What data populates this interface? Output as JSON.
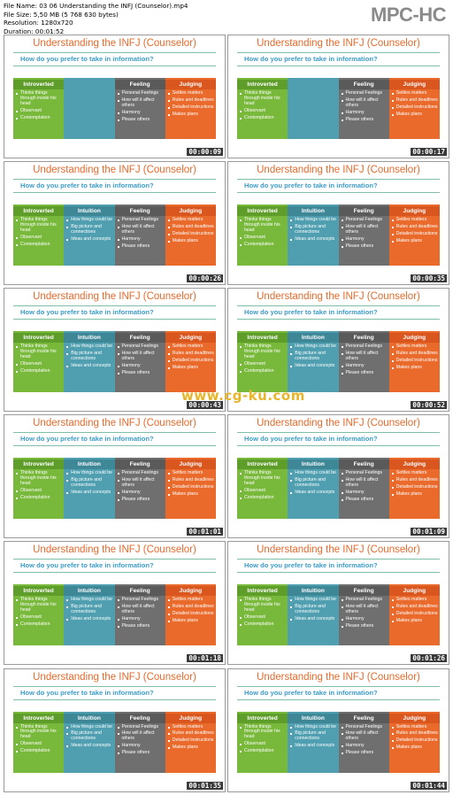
{
  "file_info": {
    "name_line": "File Name: 03 06 Understanding the INFJ (Counselor).mp4",
    "size_line": "File Size: 5,50 MB (5 768 630 bytes)",
    "resolution_line": "Resolution: 1280x720",
    "duration_line": "Duration: 00:01:52"
  },
  "brand": {
    "logo_text": "MPC-HC",
    "logo_color": "#8a8a8a"
  },
  "watermark": {
    "text": "www.cg-ku.com",
    "color": "#e7b52a"
  },
  "slide": {
    "title": "Understanding the INFJ (Counselor)",
    "question": "How do you prefer to take in information?",
    "columns": [
      {
        "key": "intro",
        "heading": "Introverted",
        "color": "#78b83a",
        "items": [
          "Thinks things through inside his head",
          "Observant",
          "Contemplation"
        ]
      },
      {
        "key": "intui",
        "heading": "Intuition",
        "color": "#4f9fb0",
        "items": [
          "How things could be",
          "Big picture and connections",
          "Ideas and concepts"
        ]
      },
      {
        "key": "feel",
        "heading": "Feeling",
        "color": "#6f6f6f",
        "items": [
          "Personal Feelings",
          "How will it affect others",
          "Harmony",
          "Please others"
        ]
      },
      {
        "key": "judge",
        "heading": "Judging",
        "color": "#ea6a2c",
        "items": [
          "Settles matters",
          "Rules and deadlines",
          "Detailed instructions",
          "Makes plans"
        ]
      }
    ]
  },
  "thumbnails": [
    {
      "time": "00:00:09",
      "intuition_visible": false
    },
    {
      "time": "00:00:17",
      "intuition_visible": false
    },
    {
      "time": "00:00:26",
      "intuition_visible": true
    },
    {
      "time": "00:00:35",
      "intuition_visible": true
    },
    {
      "time": "00:00:43",
      "intuition_visible": true
    },
    {
      "time": "00:00:52",
      "intuition_visible": true
    },
    {
      "time": "00:01:01",
      "intuition_visible": true
    },
    {
      "time": "00:01:09",
      "intuition_visible": true
    },
    {
      "time": "00:01:18",
      "intuition_visible": true
    },
    {
      "time": "00:01:26",
      "intuition_visible": true
    },
    {
      "time": "00:01:35",
      "intuition_visible": true
    },
    {
      "time": "00:01:44",
      "intuition_visible": true
    }
  ]
}
